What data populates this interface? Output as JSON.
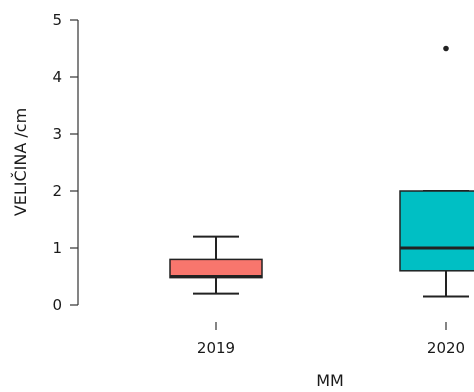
{
  "chart_data": {
    "type": "boxplot",
    "title": "",
    "xlabel": "MM",
    "ylabel": "VELIČINA /cm",
    "ylim": [
      0,
      5
    ],
    "yticks": [
      0,
      1,
      2,
      3,
      4,
      5
    ],
    "categories": [
      "2019",
      "2020"
    ],
    "boxes": [
      {
        "category": "2019",
        "min": 0.2,
        "q1": 0.48,
        "median": 0.5,
        "q3": 0.8,
        "max": 1.2,
        "outliers": [],
        "color": "#F8766D"
      },
      {
        "category": "2020",
        "min": 0.15,
        "q1": 0.6,
        "median": 1.0,
        "q3": 2.0,
        "max": 2.0,
        "outliers": [
          4.5
        ],
        "color": "#00BFC4"
      }
    ],
    "grid": false,
    "legend": "none"
  }
}
